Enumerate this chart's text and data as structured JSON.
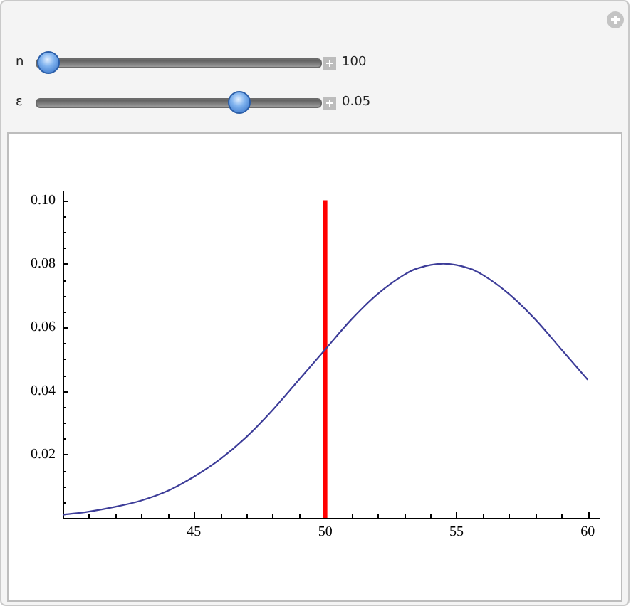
{
  "chart_data": {
    "type": "line",
    "x": [
      40,
      41,
      42,
      43,
      44,
      45,
      46,
      47,
      48,
      49,
      50,
      51,
      52,
      53,
      53.5,
      54.5,
      55.5,
      56,
      57,
      58,
      59,
      60
    ],
    "series": [
      {
        "color": "#3d3d99",
        "values": [
          0.001,
          0.002,
          0.0035,
          0.0055,
          0.0085,
          0.013,
          0.0185,
          0.0255,
          0.034,
          0.0435,
          0.053,
          0.0625,
          0.0705,
          0.0765,
          0.0785,
          0.08,
          0.0785,
          0.0765,
          0.0705,
          0.0625,
          0.053,
          0.0435
        ]
      },
      {
        "type": "line",
        "x": [
          50,
          50
        ],
        "values": [
          0,
          0.1
        ],
        "color": "#ff0000"
      }
    ],
    "xlim": [
      40,
      60.4
    ],
    "ylim": [
      0,
      0.103
    ],
    "xticks": [
      {
        "value": 41,
        "label": null
      },
      {
        "value": 42,
        "label": null
      },
      {
        "value": 43,
        "label": null
      },
      {
        "value": 44,
        "label": null
      },
      45,
      {
        "value": 46,
        "label": null
      },
      {
        "value": 47,
        "label": null
      },
      {
        "value": 48,
        "label": null
      },
      {
        "value": 49,
        "label": null
      },
      50,
      {
        "value": 51,
        "label": null
      },
      {
        "value": 52,
        "label": null
      },
      {
        "value": 53,
        "label": null
      },
      {
        "value": 54,
        "label": null
      },
      55,
      {
        "value": 56,
        "label": null
      },
      {
        "value": 57,
        "label": null
      },
      {
        "value": 58,
        "label": null
      },
      {
        "value": 59,
        "label": null
      },
      60
    ],
    "yticks": [
      {
        "value": 0.005,
        "label": null
      },
      {
        "value": 0.01,
        "label": null
      },
      {
        "value": 0.015,
        "label": null
      },
      0.02,
      {
        "value": 0.025,
        "label": null
      },
      {
        "value": 0.03,
        "label": null
      },
      {
        "value": 0.035,
        "label": null
      },
      0.04,
      {
        "value": 0.045,
        "label": null
      },
      {
        "value": 0.05,
        "label": null
      },
      {
        "value": 0.055,
        "label": null
      },
      0.06,
      {
        "value": 0.065,
        "label": null
      },
      {
        "value": 0.07,
        "label": null
      },
      {
        "value": 0.075,
        "label": null
      },
      0.08,
      {
        "value": 0.085,
        "label": null
      },
      {
        "value": 0.09,
        "label": null
      },
      {
        "value": 0.095,
        "label": null
      },
      {
        "value": 0.1,
        "label": "0.10"
      }
    ],
    "annotations": [
      "n",
      "100",
      "ε",
      "0.05"
    ]
  }
}
